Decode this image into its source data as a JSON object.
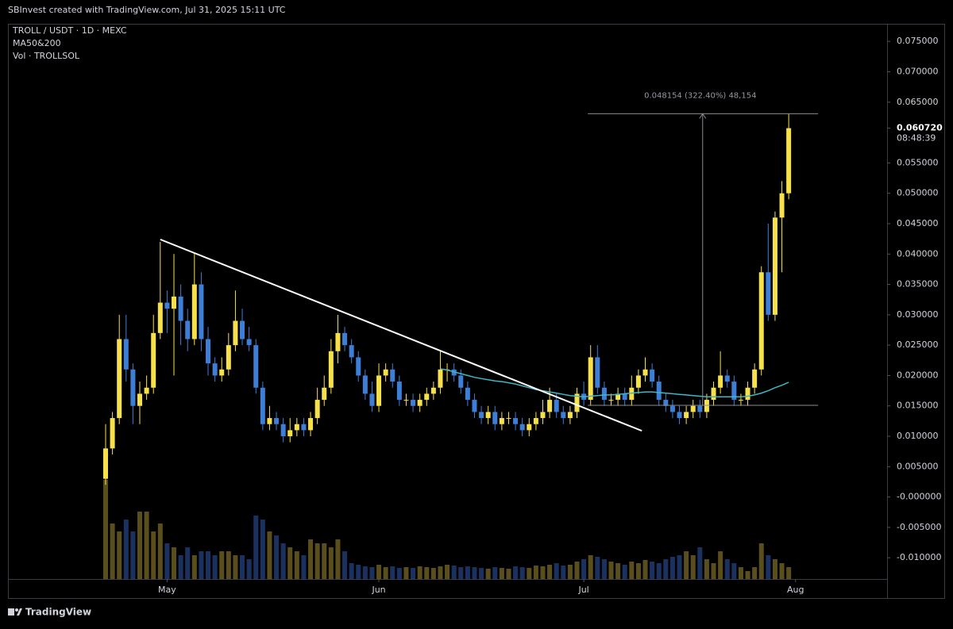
{
  "header": "SBInvest created with TradingView.com, Jul 31, 2025 15:11 UTC",
  "footer": "TradingView",
  "chart_data": {
    "type": "candlestick",
    "title": "TROLL / USDT · 1D · MEXC",
    "indicator": "MA50&200",
    "volume_label": "Vol · TROLLSOL",
    "up_color": "#f7e14b",
    "down_color": "#3d7fd6",
    "up_volume_color": "#5a4f1c",
    "down_volume_color": "#1b3260",
    "open": [
      0.003,
      0.008,
      0.013,
      0.026,
      0.021,
      0.015,
      0.017,
      0.018,
      0.027,
      0.032,
      0.031,
      0.033,
      0.029,
      0.026,
      0.035,
      0.026,
      0.022,
      0.02,
      0.021,
      0.025,
      0.029,
      0.026,
      0.025,
      0.018,
      0.012,
      0.013,
      0.012,
      0.01,
      0.011,
      0.012,
      0.011,
      0.013,
      0.016,
      0.018,
      0.024,
      0.027,
      0.025,
      0.023,
      0.02,
      0.017,
      0.015,
      0.02,
      0.021,
      0.019,
      0.016,
      0.016,
      0.015,
      0.016,
      0.017,
      0.018,
      0.021,
      0.021,
      0.02,
      0.018,
      0.016,
      0.014,
      0.013,
      0.014,
      0.012,
      0.013,
      0.013,
      0.012,
      0.011,
      0.012,
      0.013,
      0.014,
      0.016,
      0.014,
      0.013,
      0.014,
      0.017,
      0.016,
      0.023,
      0.018,
      0.016,
      0.016,
      0.017,
      0.016,
      0.018,
      0.02,
      0.021,
      0.019,
      0.016,
      0.015,
      0.014,
      0.013,
      0.014,
      0.015,
      0.014,
      0.016,
      0.018,
      0.02,
      0.019,
      0.016,
      0.016,
      0.018,
      0.021,
      0.037,
      0.03,
      0.046,
      0.05
    ],
    "high": [
      0.012,
      0.014,
      0.03,
      0.03,
      0.022,
      0.019,
      0.02,
      0.03,
      0.042,
      0.034,
      0.04,
      0.035,
      0.031,
      0.04,
      0.037,
      0.028,
      0.023,
      0.023,
      0.027,
      0.034,
      0.031,
      0.028,
      0.026,
      0.019,
      0.015,
      0.014,
      0.013,
      0.013,
      0.013,
      0.013,
      0.014,
      0.018,
      0.02,
      0.026,
      0.03,
      0.028,
      0.026,
      0.024,
      0.021,
      0.019,
      0.022,
      0.022,
      0.022,
      0.02,
      0.017,
      0.017,
      0.017,
      0.018,
      0.019,
      0.024,
      0.022,
      0.022,
      0.021,
      0.019,
      0.017,
      0.015,
      0.015,
      0.015,
      0.014,
      0.014,
      0.014,
      0.013,
      0.013,
      0.014,
      0.016,
      0.018,
      0.017,
      0.015,
      0.015,
      0.018,
      0.019,
      0.025,
      0.025,
      0.019,
      0.017,
      0.018,
      0.018,
      0.02,
      0.021,
      0.023,
      0.022,
      0.02,
      0.017,
      0.016,
      0.015,
      0.015,
      0.016,
      0.016,
      0.017,
      0.019,
      0.024,
      0.021,
      0.02,
      0.017,
      0.019,
      0.022,
      0.038,
      0.045,
      0.047,
      0.052,
      0.0631
    ],
    "low": [
      0.002,
      0.007,
      0.012,
      0.019,
      0.012,
      0.012,
      0.016,
      0.017,
      0.026,
      0.027,
      0.02,
      0.025,
      0.024,
      0.025,
      0.024,
      0.02,
      0.019,
      0.019,
      0.02,
      0.024,
      0.025,
      0.024,
      0.017,
      0.011,
      0.011,
      0.011,
      0.009,
      0.009,
      0.01,
      0.01,
      0.01,
      0.012,
      0.015,
      0.017,
      0.022,
      0.024,
      0.022,
      0.019,
      0.016,
      0.014,
      0.014,
      0.019,
      0.018,
      0.015,
      0.015,
      0.014,
      0.014,
      0.015,
      0.016,
      0.017,
      0.019,
      0.019,
      0.017,
      0.015,
      0.013,
      0.012,
      0.012,
      0.011,
      0.011,
      0.012,
      0.011,
      0.01,
      0.01,
      0.011,
      0.012,
      0.013,
      0.013,
      0.012,
      0.012,
      0.013,
      0.015,
      0.015,
      0.017,
      0.015,
      0.015,
      0.015,
      0.015,
      0.015,
      0.017,
      0.019,
      0.018,
      0.015,
      0.014,
      0.013,
      0.012,
      0.012,
      0.013,
      0.013,
      0.013,
      0.015,
      0.017,
      0.018,
      0.015,
      0.015,
      0.015,
      0.017,
      0.02,
      0.029,
      0.029,
      0.037,
      0.049
    ],
    "close": [
      0.008,
      0.013,
      0.026,
      0.021,
      0.015,
      0.017,
      0.018,
      0.027,
      0.032,
      0.031,
      0.033,
      0.029,
      0.026,
      0.035,
      0.026,
      0.022,
      0.02,
      0.021,
      0.025,
      0.029,
      0.026,
      0.025,
      0.018,
      0.012,
      0.013,
      0.012,
      0.01,
      0.011,
      0.012,
      0.011,
      0.013,
      0.016,
      0.018,
      0.024,
      0.027,
      0.025,
      0.023,
      0.02,
      0.017,
      0.015,
      0.02,
      0.021,
      0.019,
      0.016,
      0.016,
      0.015,
      0.016,
      0.017,
      0.018,
      0.021,
      0.021,
      0.02,
      0.018,
      0.016,
      0.014,
      0.013,
      0.014,
      0.012,
      0.013,
      0.013,
      0.012,
      0.011,
      0.012,
      0.013,
      0.014,
      0.016,
      0.014,
      0.013,
      0.014,
      0.017,
      0.016,
      0.023,
      0.018,
      0.016,
      0.016,
      0.017,
      0.016,
      0.018,
      0.02,
      0.021,
      0.019,
      0.016,
      0.015,
      0.014,
      0.013,
      0.014,
      0.015,
      0.014,
      0.016,
      0.018,
      0.02,
      0.019,
      0.016,
      0.016,
      0.018,
      0.021,
      0.037,
      0.03,
      0.046,
      0.05,
      0.06072
    ],
    "volume": [
      125,
      70,
      60,
      75,
      60,
      85,
      85,
      60,
      70,
      45,
      40,
      30,
      40,
      30,
      35,
      35,
      30,
      35,
      35,
      30,
      30,
      25,
      80,
      75,
      60,
      55,
      45,
      40,
      35,
      30,
      50,
      45,
      45,
      40,
      50,
      35,
      20,
      18,
      16,
      15,
      18,
      15,
      16,
      14,
      15,
      14,
      16,
      15,
      14,
      16,
      18,
      17,
      15,
      16,
      15,
      14,
      13,
      15,
      14,
      13,
      16,
      15,
      14,
      17,
      16,
      18,
      20,
      17,
      18,
      22,
      25,
      30,
      28,
      25,
      22,
      20,
      18,
      22,
      20,
      24,
      22,
      20,
      25,
      28,
      30,
      35,
      30,
      40,
      25,
      20,
      35,
      25,
      20,
      15,
      10,
      15,
      45,
      30,
      25,
      20,
      15
    ],
    "ma": {
      "color": "#3fb6c8",
      "values": [
        null,
        null,
        null,
        null,
        null,
        null,
        null,
        null,
        null,
        null,
        null,
        null,
        null,
        null,
        null,
        null,
        null,
        null,
        null,
        null,
        null,
        null,
        null,
        null,
        null,
        null,
        null,
        null,
        null,
        null,
        null,
        null,
        null,
        null,
        null,
        null,
        null,
        null,
        null,
        null,
        null,
        null,
        null,
        null,
        null,
        null,
        null,
        null,
        null,
        0.0211,
        0.0209,
        0.0206,
        0.0203,
        0.02,
        0.0197,
        0.0195,
        0.0193,
        0.0191,
        0.019,
        0.0188,
        0.0186,
        0.0183,
        0.018,
        0.0177,
        0.0175,
        0.0173,
        0.0171,
        0.0169,
        0.0167,
        0.0166,
        0.0165,
        0.0166,
        0.0167,
        0.0168,
        0.0168,
        0.0169,
        0.017,
        0.0171,
        0.0172,
        0.0173,
        0.0173,
        0.0172,
        0.0171,
        0.017,
        0.0169,
        0.0168,
        0.0167,
        0.0166,
        0.0165,
        0.0165,
        0.0165,
        0.0165,
        0.0165,
        0.0165,
        0.0166,
        0.0168,
        0.0171,
        0.0175,
        0.018,
        0.0184,
        0.0189
      ]
    },
    "last_price": {
      "value": 0.06072,
      "label": "0.060720"
    },
    "countdown": "08:48:39",
    "trendline": {
      "x": [
        8,
        78.5
      ],
      "y": [
        0.0424,
        0.0109
      ]
    },
    "measure": {
      "label": "0.048154 (322.40%) 48,154",
      "x": [
        70.6,
        104.3
      ],
      "arrow_x": 87.4,
      "y": [
        0.0151,
        0.0631
      ]
    },
    "xlim": [
      -14.3,
      114.4
    ],
    "xticks": [
      {
        "value": 9,
        "label": "May"
      },
      {
        "value": 40,
        "label": "Jun"
      },
      {
        "value": 70,
        "label": "Jul"
      },
      {
        "value": 101,
        "label": "Aug"
      }
    ],
    "ylim": [
      -0.0135,
      0.0779
    ],
    "yticks": [
      {
        "value": 0.075,
        "label": "0.075000"
      },
      {
        "value": 0.07,
        "label": "0.070000"
      },
      {
        "value": 0.065,
        "label": "0.065000"
      },
      {
        "value": 0.055,
        "label": "0.055000"
      },
      {
        "value": 0.05,
        "label": "0.050000"
      },
      {
        "value": 0.045,
        "label": "0.045000"
      },
      {
        "value": 0.04,
        "label": "0.040000"
      },
      {
        "value": 0.035,
        "label": "0.035000"
      },
      {
        "value": 0.03,
        "label": "0.030000"
      },
      {
        "value": 0.025,
        "label": "0.025000"
      },
      {
        "value": 0.02,
        "label": "0.020000"
      },
      {
        "value": 0.015,
        "label": "0.015000"
      },
      {
        "value": 0.01,
        "label": "0.010000"
      },
      {
        "value": 0.005,
        "label": "0.005000"
      },
      {
        "value": 0,
        "label": "-0.000000"
      },
      {
        "value": -0.005,
        "label": "-0.005000"
      },
      {
        "value": -0.01,
        "label": "-0.010000"
      }
    ]
  }
}
